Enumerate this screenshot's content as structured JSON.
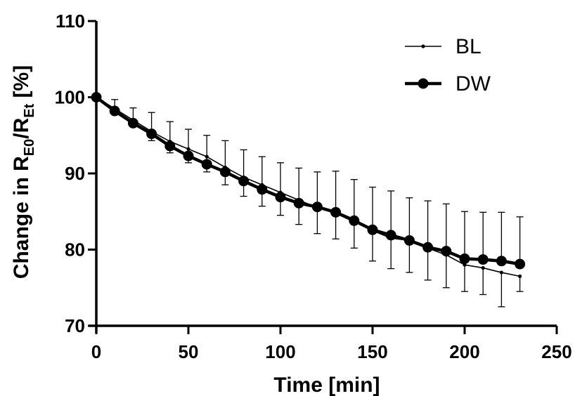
{
  "chart_data": {
    "type": "line",
    "xlabel": "Time [min]",
    "ylabel": {
      "prefix": "Change in R",
      "sub1": "E0",
      "mid": "/R",
      "sub2": "Et",
      "suffix": " [%]"
    },
    "xlim": [
      0,
      250
    ],
    "ylim": [
      70,
      110
    ],
    "xticks": [
      0,
      50,
      100,
      150,
      200,
      250
    ],
    "yticks": [
      70,
      80,
      90,
      100,
      110
    ],
    "grid": false,
    "legend_position": "top-right",
    "x": [
      0,
      10,
      20,
      30,
      40,
      50,
      60,
      70,
      80,
      90,
      100,
      110,
      120,
      130,
      140,
      150,
      160,
      170,
      180,
      190,
      200,
      210,
      220,
      230
    ],
    "series": [
      {
        "name": "BL",
        "style": "thin line, small dots",
        "values": [
          100,
          98.5,
          97,
          95.5,
          94.2,
          93.2,
          92.2,
          90.8,
          89.5,
          88.5,
          87.5,
          86.5,
          85.5,
          85.0,
          84.0,
          82.5,
          81.5,
          81.2,
          80.2,
          79.3,
          78.0,
          77.6,
          77.0,
          76.5
        ],
        "error_down": [
          0,
          0.6,
          0.8,
          1.2,
          1.5,
          1.8,
          2.0,
          2.3,
          2.5,
          2.8,
          3.0,
          3.2,
          3.4,
          3.6,
          3.8,
          4.0,
          4.0,
          4.2,
          4.2,
          4.3,
          3.5,
          3.5,
          4.5,
          2.0
        ],
        "error_up": [
          0,
          0,
          0,
          0,
          0,
          0,
          0,
          0,
          0,
          0,
          0,
          0,
          0,
          0,
          0,
          0,
          0,
          0,
          0,
          0,
          0,
          0,
          0,
          0
        ]
      },
      {
        "name": "DW",
        "style": "thick line, large filled circles",
        "values": [
          100,
          98.2,
          96.6,
          95.2,
          93.6,
          92.3,
          91.2,
          90.2,
          89.0,
          87.9,
          86.9,
          86.1,
          85.6,
          84.9,
          83.8,
          82.6,
          81.9,
          81.2,
          80.3,
          79.8,
          78.8,
          78.7,
          78.5,
          78.1
        ],
        "error_down": [
          0,
          0,
          0,
          0,
          0,
          0,
          0,
          0,
          0,
          0,
          0,
          0,
          0,
          0,
          0,
          0,
          0,
          0,
          0,
          0,
          0,
          0,
          0,
          0
        ],
        "error_up": [
          0,
          1.5,
          2.0,
          2.8,
          3.2,
          3.5,
          3.8,
          4.1,
          4.1,
          4.3,
          4.5,
          4.6,
          4.6,
          5.4,
          5.4,
          5.6,
          5.8,
          5.6,
          6.1,
          6.2,
          6.2,
          6.2,
          6.4,
          6.2
        ]
      }
    ]
  }
}
